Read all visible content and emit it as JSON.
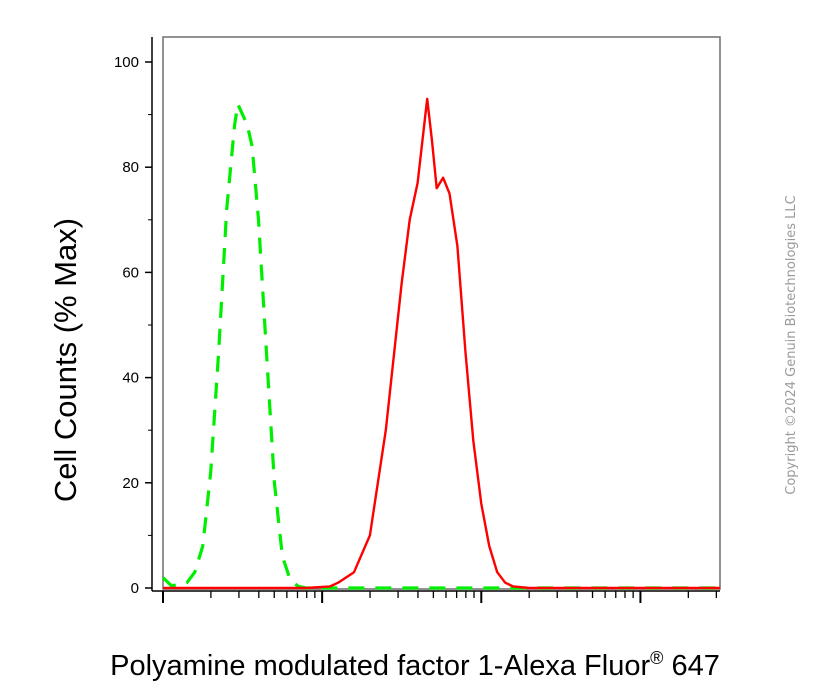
{
  "chart_data": {
    "type": "area",
    "ylabel": "Cell Counts (% Max)",
    "xlabel": "Polyamine modulated factor 1-Alexa Fluor",
    "xlabel_superscript": "®",
    "xlabel_suffix": " 647",
    "y_ticks": [
      "0",
      "20",
      "40",
      "60",
      "80",
      "100"
    ],
    "ylim": [
      0,
      100
    ],
    "x_scale": "log",
    "x_decades": 3.5,
    "grid": false,
    "copyright": "Copyright ©2024 Genuin Biotechnologies LLC",
    "series": [
      {
        "color": "#00ee00",
        "style": "dashed",
        "points": [
          [
            0.0,
            2
          ],
          [
            0.05,
            0.5
          ],
          [
            0.1,
            0.5
          ],
          [
            0.15,
            1
          ],
          [
            0.2,
            3
          ],
          [
            0.25,
            8
          ],
          [
            0.3,
            22
          ],
          [
            0.35,
            45
          ],
          [
            0.4,
            72
          ],
          [
            0.45,
            88
          ],
          [
            0.47,
            92
          ],
          [
            0.5,
            90
          ],
          [
            0.53,
            88
          ],
          [
            0.56,
            84
          ],
          [
            0.6,
            70
          ],
          [
            0.65,
            45
          ],
          [
            0.7,
            20
          ],
          [
            0.75,
            6
          ],
          [
            0.8,
            1.5
          ],
          [
            0.85,
            0.3
          ],
          [
            0.9,
            0
          ],
          [
            1.5,
            0
          ],
          [
            1.8,
            0
          ],
          [
            2.2,
            0
          ],
          [
            3.5,
            0
          ]
        ]
      },
      {
        "color": "#ff0000",
        "style": "solid",
        "points": [
          [
            0.0,
            0
          ],
          [
            0.9,
            0
          ],
          [
            1.05,
            0.3
          ],
          [
            1.1,
            1
          ],
          [
            1.2,
            3
          ],
          [
            1.3,
            10
          ],
          [
            1.4,
            30
          ],
          [
            1.5,
            58
          ],
          [
            1.55,
            70
          ],
          [
            1.6,
            77
          ],
          [
            1.63,
            85
          ],
          [
            1.66,
            93
          ],
          [
            1.69,
            85
          ],
          [
            1.72,
            76
          ],
          [
            1.76,
            78
          ],
          [
            1.8,
            75
          ],
          [
            1.85,
            65
          ],
          [
            1.9,
            45
          ],
          [
            1.95,
            28
          ],
          [
            2.0,
            16
          ],
          [
            2.05,
            8
          ],
          [
            2.1,
            3
          ],
          [
            2.15,
            1
          ],
          [
            2.2,
            0.3
          ],
          [
            2.3,
            0
          ],
          [
            3.5,
            0
          ]
        ]
      }
    ]
  }
}
